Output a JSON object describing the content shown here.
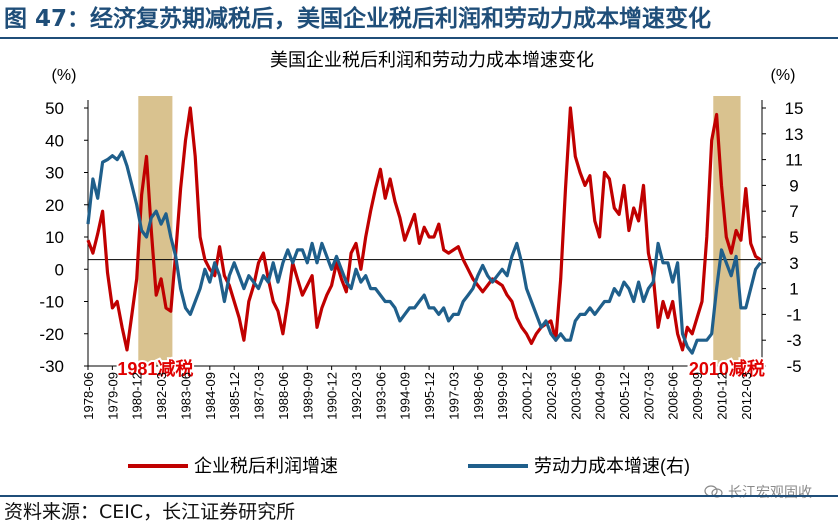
{
  "figure": {
    "title": "图 47：经济复苏期减税后，美国企业税后利润和劳动力成本增速变化",
    "source": "资料来源：CEIC，长江证券研究所",
    "watermark": "长江宏观固收"
  },
  "colors": {
    "profit": "#c00000",
    "labor": "#1f5f8b",
    "shade": "#d9c28f",
    "annot": "#e00000",
    "axis": "#000000"
  },
  "chart_data": {
    "type": "line",
    "title": "美国企业税后利润和劳动力成本增速变化",
    "y_left": {
      "unit_label": "(%)",
      "ylim": [
        -30,
        50
      ],
      "ticks": [
        50,
        40,
        30,
        20,
        10,
        0,
        -10,
        -20,
        -30
      ]
    },
    "y_right": {
      "unit_label": "(%)",
      "ylim": [
        -5,
        15
      ],
      "ticks": [
        15,
        13,
        11,
        9,
        7,
        5,
        3,
        1,
        -1,
        -3,
        -5
      ]
    },
    "x_range": [
      1978.42,
      2013.0
    ],
    "x_tick_labels": [
      "1978-06",
      "1979-09",
      "1980-12",
      "1982-03",
      "1983-06",
      "1984-09",
      "1985-12",
      "1987-03",
      "1988-06",
      "1989-09",
      "1990-12",
      "1992-03",
      "1993-06",
      "1994-09",
      "1995-12",
      "1997-03",
      "1998-06",
      "1999-09",
      "2000-12",
      "2002-03",
      "2003-06",
      "2004-09",
      "2005-12",
      "2007-03",
      "2008-06",
      "2009-09",
      "2010-12",
      "2012-03"
    ],
    "x_tick_values": [
      1978.42,
      1979.67,
      1980.92,
      1982.17,
      1983.42,
      1984.67,
      1985.92,
      1987.17,
      1988.42,
      1989.67,
      1990.92,
      1992.17,
      1993.42,
      1994.67,
      1995.92,
      1997.17,
      1998.42,
      1999.67,
      2000.92,
      2002.17,
      2003.42,
      2004.67,
      2005.92,
      2007.17,
      2008.42,
      2009.67,
      2010.92,
      2012.17
    ],
    "baseline_left": 3.0,
    "shaded_periods": [
      {
        "start": 1981.0,
        "end": 1982.75,
        "label": "1981减税"
      },
      {
        "start": 2010.5,
        "end": 2011.9,
        "label": "2010减税"
      }
    ],
    "series": [
      {
        "name": "企业税后利润增速",
        "axis": "left",
        "color": "#c00000",
        "points": [
          [
            1978.42,
            9
          ],
          [
            1978.67,
            5
          ],
          [
            1978.92,
            11
          ],
          [
            1979.17,
            18
          ],
          [
            1979.42,
            -1
          ],
          [
            1979.67,
            -12
          ],
          [
            1979.92,
            -10
          ],
          [
            1980.17,
            -18
          ],
          [
            1980.42,
            -25
          ],
          [
            1980.67,
            -14
          ],
          [
            1980.92,
            -3
          ],
          [
            1981.17,
            23
          ],
          [
            1981.42,
            35
          ],
          [
            1981.67,
            12
          ],
          [
            1981.92,
            -8
          ],
          [
            1982.17,
            -3
          ],
          [
            1982.42,
            -12
          ],
          [
            1982.67,
            -13
          ],
          [
            1982.92,
            5
          ],
          [
            1983.17,
            25
          ],
          [
            1983.42,
            40
          ],
          [
            1983.67,
            50
          ],
          [
            1983.92,
            35
          ],
          [
            1984.17,
            10
          ],
          [
            1984.42,
            3
          ],
          [
            1984.67,
            0
          ],
          [
            1984.92,
            -2
          ],
          [
            1985.17,
            7
          ],
          [
            1985.42,
            -2
          ],
          [
            1985.67,
            -5
          ],
          [
            1985.92,
            -10
          ],
          [
            1986.17,
            -15
          ],
          [
            1986.42,
            -22
          ],
          [
            1986.67,
            -10
          ],
          [
            1986.92,
            -5
          ],
          [
            1987.17,
            2
          ],
          [
            1987.42,
            5
          ],
          [
            1987.67,
            -3
          ],
          [
            1987.92,
            -10
          ],
          [
            1988.17,
            -13
          ],
          [
            1988.42,
            -20
          ],
          [
            1988.67,
            -10
          ],
          [
            1988.92,
            2
          ],
          [
            1989.17,
            -3
          ],
          [
            1989.42,
            -8
          ],
          [
            1989.67,
            -5
          ],
          [
            1989.92,
            -2
          ],
          [
            1990.17,
            -18
          ],
          [
            1990.42,
            -12
          ],
          [
            1990.67,
            -8
          ],
          [
            1990.92,
            -5
          ],
          [
            1991.17,
            2
          ],
          [
            1991.42,
            -3
          ],
          [
            1991.67,
            -7
          ],
          [
            1991.92,
            5
          ],
          [
            1992.17,
            8
          ],
          [
            1992.42,
            0
          ],
          [
            1992.67,
            10
          ],
          [
            1992.92,
            18
          ],
          [
            1993.17,
            25
          ],
          [
            1993.42,
            31
          ],
          [
            1993.67,
            22
          ],
          [
            1993.92,
            28
          ],
          [
            1994.17,
            21
          ],
          [
            1994.42,
            16
          ],
          [
            1994.67,
            9
          ],
          [
            1994.92,
            13
          ],
          [
            1995.17,
            17
          ],
          [
            1995.42,
            8
          ],
          [
            1995.67,
            13
          ],
          [
            1995.92,
            10
          ],
          [
            1996.17,
            10
          ],
          [
            1996.42,
            14
          ],
          [
            1996.67,
            6
          ],
          [
            1996.92,
            5
          ],
          [
            1997.17,
            6
          ],
          [
            1997.42,
            7
          ],
          [
            1997.67,
            3
          ],
          [
            1997.92,
            0
          ],
          [
            1998.17,
            -3
          ],
          [
            1998.42,
            -5
          ],
          [
            1998.67,
            -7
          ],
          [
            1998.92,
            -5
          ],
          [
            1999.17,
            -3
          ],
          [
            1999.42,
            -4
          ],
          [
            1999.67,
            -5
          ],
          [
            1999.92,
            -8
          ],
          [
            2000.17,
            -10
          ],
          [
            2000.42,
            -15
          ],
          [
            2000.67,
            -18
          ],
          [
            2000.92,
            -20
          ],
          [
            2001.17,
            -23
          ],
          [
            2001.42,
            -20
          ],
          [
            2001.67,
            -18
          ],
          [
            2001.92,
            -17
          ],
          [
            2002.17,
            -16
          ],
          [
            2002.42,
            -22
          ],
          [
            2002.67,
            -3
          ],
          [
            2002.92,
            25
          ],
          [
            2003.17,
            50
          ],
          [
            2003.42,
            35
          ],
          [
            2003.67,
            30
          ],
          [
            2003.92,
            26
          ],
          [
            2004.17,
            29
          ],
          [
            2004.42,
            15
          ],
          [
            2004.67,
            10
          ],
          [
            2004.92,
            30
          ],
          [
            2005.17,
            28
          ],
          [
            2005.42,
            19
          ],
          [
            2005.67,
            17
          ],
          [
            2005.92,
            26
          ],
          [
            2006.17,
            12
          ],
          [
            2006.42,
            19
          ],
          [
            2006.67,
            15
          ],
          [
            2006.92,
            26
          ],
          [
            2007.17,
            5
          ],
          [
            2007.42,
            -2
          ],
          [
            2007.67,
            -18
          ],
          [
            2007.92,
            -10
          ],
          [
            2008.17,
            -15
          ],
          [
            2008.42,
            -10
          ],
          [
            2008.67,
            -20
          ],
          [
            2008.92,
            -25
          ],
          [
            2009.17,
            -18
          ],
          [
            2009.42,
            -20
          ],
          [
            2009.67,
            -15
          ],
          [
            2009.92,
            -10
          ],
          [
            2010.17,
            10
          ],
          [
            2010.42,
            40
          ],
          [
            2010.67,
            48
          ],
          [
            2010.92,
            26
          ],
          [
            2011.17,
            10
          ],
          [
            2011.42,
            5
          ],
          [
            2011.67,
            12
          ],
          [
            2011.92,
            9
          ],
          [
            2012.17,
            25
          ],
          [
            2012.42,
            8
          ],
          [
            2012.67,
            4
          ],
          [
            2012.92,
            3
          ]
        ]
      },
      {
        "name": "劳动力成本增速(右)",
        "axis": "right",
        "color": "#1f5f8b",
        "points": [
          [
            1978.42,
            6
          ],
          [
            1978.67,
            9.5
          ],
          [
            1978.92,
            8
          ],
          [
            1979.17,
            10.8
          ],
          [
            1979.42,
            11
          ],
          [
            1979.67,
            11.3
          ],
          [
            1979.92,
            11
          ],
          [
            1980.17,
            11.6
          ],
          [
            1980.42,
            10.5
          ],
          [
            1980.67,
            9
          ],
          [
            1980.92,
            7.5
          ],
          [
            1981.17,
            5.5
          ],
          [
            1981.42,
            5
          ],
          [
            1981.67,
            6.5
          ],
          [
            1981.92,
            7
          ],
          [
            1982.17,
            6
          ],
          [
            1982.42,
            6.8
          ],
          [
            1982.67,
            5
          ],
          [
            1982.92,
            3.5
          ],
          [
            1983.17,
            1
          ],
          [
            1983.42,
            -0.5
          ],
          [
            1983.67,
            -1
          ],
          [
            1983.92,
            0
          ],
          [
            1984.17,
            1
          ],
          [
            1984.42,
            2.5
          ],
          [
            1984.67,
            1.5
          ],
          [
            1984.92,
            3
          ],
          [
            1985.17,
            2
          ],
          [
            1985.42,
            0
          ],
          [
            1985.67,
            2
          ],
          [
            1985.92,
            3
          ],
          [
            1986.17,
            2
          ],
          [
            1986.42,
            1
          ],
          [
            1986.67,
            2
          ],
          [
            1986.92,
            1.5
          ],
          [
            1987.17,
            1
          ],
          [
            1987.42,
            2
          ],
          [
            1987.67,
            1.5
          ],
          [
            1987.92,
            3
          ],
          [
            1988.17,
            1.5
          ],
          [
            1988.42,
            3
          ],
          [
            1988.67,
            4
          ],
          [
            1988.92,
            3
          ],
          [
            1989.17,
            4
          ],
          [
            1989.42,
            4
          ],
          [
            1989.67,
            3
          ],
          [
            1989.92,
            4.5
          ],
          [
            1990.17,
            3
          ],
          [
            1990.42,
            4.5
          ],
          [
            1990.67,
            3.5
          ],
          [
            1990.92,
            2.5
          ],
          [
            1991.17,
            3.5
          ],
          [
            1991.42,
            2.5
          ],
          [
            1991.67,
            1.5
          ],
          [
            1991.92,
            1
          ],
          [
            1992.17,
            2.5
          ],
          [
            1992.42,
            1.5
          ],
          [
            1992.67,
            2
          ],
          [
            1992.92,
            1
          ],
          [
            1993.17,
            1
          ],
          [
            1993.42,
            0.5
          ],
          [
            1993.67,
            0
          ],
          [
            1993.92,
            0
          ],
          [
            1994.17,
            -0.5
          ],
          [
            1994.42,
            -1.5
          ],
          [
            1994.67,
            -1
          ],
          [
            1994.92,
            -0.5
          ],
          [
            1995.17,
            -0.5
          ],
          [
            1995.42,
            0
          ],
          [
            1995.67,
            0.5
          ],
          [
            1995.92,
            -0.5
          ],
          [
            1996.17,
            -0.5
          ],
          [
            1996.42,
            -1
          ],
          [
            1996.67,
            -0.5
          ],
          [
            1996.92,
            -1.5
          ],
          [
            1997.17,
            -1
          ],
          [
            1997.42,
            -1
          ],
          [
            1997.67,
            0
          ],
          [
            1997.92,
            0.5
          ],
          [
            1998.17,
            1
          ],
          [
            1998.42,
            2
          ],
          [
            1998.67,
            2.8
          ],
          [
            1998.92,
            2
          ],
          [
            1999.17,
            1.5
          ],
          [
            1999.42,
            2
          ],
          [
            1999.67,
            2.5
          ],
          [
            1999.92,
            2
          ],
          [
            2000.17,
            3.5
          ],
          [
            2000.42,
            4.5
          ],
          [
            2000.67,
            3
          ],
          [
            2000.92,
            1
          ],
          [
            2001.17,
            0
          ],
          [
            2001.42,
            -1
          ],
          [
            2001.67,
            -2
          ],
          [
            2001.92,
            -1.5
          ],
          [
            2002.17,
            -2.5
          ],
          [
            2002.42,
            -3
          ],
          [
            2002.67,
            -2.5
          ],
          [
            2002.92,
            -3
          ],
          [
            2003.17,
            -3
          ],
          [
            2003.42,
            -1.5
          ],
          [
            2003.67,
            -1
          ],
          [
            2003.92,
            -1
          ],
          [
            2004.17,
            -0.5
          ],
          [
            2004.42,
            -1
          ],
          [
            2004.67,
            -0.5
          ],
          [
            2004.92,
            0
          ],
          [
            2005.17,
            0
          ],
          [
            2005.42,
            1
          ],
          [
            2005.67,
            0.5
          ],
          [
            2005.92,
            1.5
          ],
          [
            2006.17,
            1
          ],
          [
            2006.42,
            0
          ],
          [
            2006.67,
            1.5
          ],
          [
            2006.92,
            0
          ],
          [
            2007.17,
            1
          ],
          [
            2007.42,
            1.5
          ],
          [
            2007.67,
            4.5
          ],
          [
            2007.92,
            3
          ],
          [
            2008.17,
            3
          ],
          [
            2008.42,
            1.5
          ],
          [
            2008.67,
            3
          ],
          [
            2008.92,
            -2.5
          ],
          [
            2009.17,
            -3.5
          ],
          [
            2009.42,
            -4
          ],
          [
            2009.67,
            -3
          ],
          [
            2009.92,
            -3
          ],
          [
            2010.17,
            -3
          ],
          [
            2010.42,
            -2.5
          ],
          [
            2010.67,
            1
          ],
          [
            2010.92,
            4
          ],
          [
            2011.17,
            3
          ],
          [
            2011.42,
            2
          ],
          [
            2011.67,
            3.5
          ],
          [
            2011.92,
            -0.5
          ],
          [
            2012.17,
            -0.5
          ],
          [
            2012.42,
            1
          ],
          [
            2012.67,
            2.5
          ],
          [
            2012.92,
            3
          ]
        ]
      }
    ]
  }
}
